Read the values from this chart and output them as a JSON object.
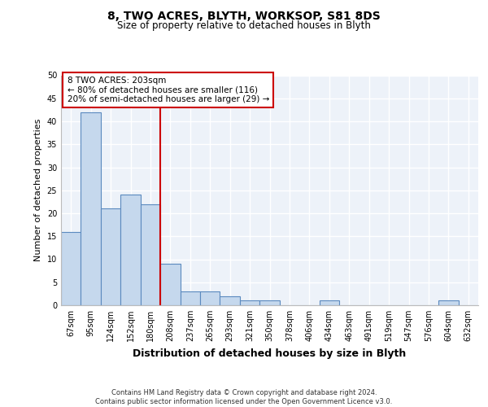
{
  "title": "8, TWO ACRES, BLYTH, WORKSOP, S81 8DS",
  "subtitle": "Size of property relative to detached houses in Blyth",
  "xlabel": "Distribution of detached houses by size in Blyth",
  "ylabel": "Number of detached properties",
  "categories": [
    "67sqm",
    "95sqm",
    "124sqm",
    "152sqm",
    "180sqm",
    "208sqm",
    "237sqm",
    "265sqm",
    "293sqm",
    "321sqm",
    "350sqm",
    "378sqm",
    "406sqm",
    "434sqm",
    "463sqm",
    "491sqm",
    "519sqm",
    "547sqm",
    "576sqm",
    "604sqm",
    "632sqm"
  ],
  "values": [
    16,
    42,
    21,
    24,
    22,
    9,
    3,
    3,
    2,
    1,
    1,
    0,
    0,
    1,
    0,
    0,
    0,
    0,
    0,
    1,
    0
  ],
  "bar_color": "#c5d8ed",
  "bar_edge_color": "#5b8abf",
  "ylim": [
    0,
    50
  ],
  "yticks": [
    0,
    5,
    10,
    15,
    20,
    25,
    30,
    35,
    40,
    45,
    50
  ],
  "property_line_x": 5,
  "property_label": "8 TWO ACRES: 203sqm",
  "annotation_line1": "← 80% of detached houses are smaller (116)",
  "annotation_line2": "20% of semi-detached houses are larger (29) →",
  "annotation_box_color": "#ffffff",
  "annotation_box_edge_color": "#cc0000",
  "footer": "Contains HM Land Registry data © Crown copyright and database right 2024.\nContains public sector information licensed under the Open Government Licence v3.0.",
  "background_color": "#edf2f9",
  "grid_color": "#ffffff",
  "fig_bg": "#ffffff"
}
